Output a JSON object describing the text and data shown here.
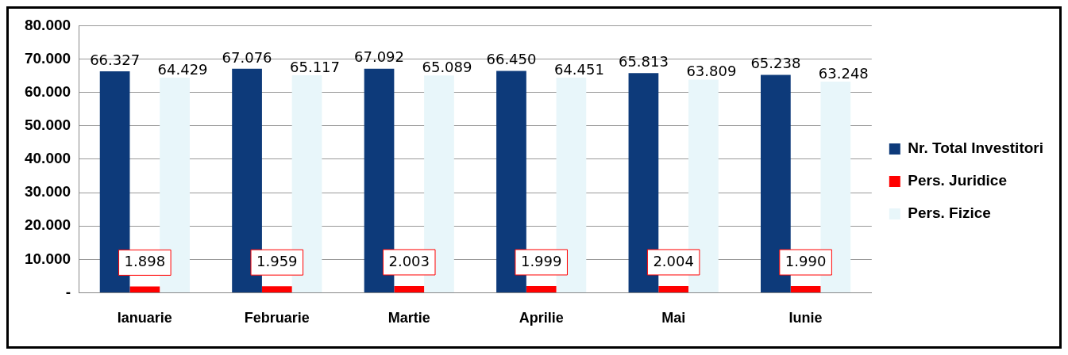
{
  "chart_data": {
    "type": "bar",
    "categories": [
      "Ianuarie",
      "Februarie",
      "Martie",
      "Aprilie",
      "Mai",
      "Iunie"
    ],
    "series": [
      {
        "name": "Nr. Total Investitori",
        "color": "#0d3a7a",
        "values": [
          66327,
          67076,
          67092,
          66450,
          65813,
          65238
        ],
        "value_labels": [
          "66.327",
          "67.076",
          "67.092",
          "66.450",
          "65.813",
          "65.238"
        ]
      },
      {
        "name": "Pers. Juridice",
        "color": "#ff0000",
        "values": [
          1898,
          1959,
          2003,
          1999,
          2004,
          1990
        ],
        "value_labels": [
          "1.898",
          "1.959",
          "2.003",
          "1.999",
          "2.004",
          "1.990"
        ]
      },
      {
        "name": "Pers. Fizice",
        "color": "#e8f6fa",
        "values": [
          64429,
          65117,
          65089,
          64451,
          63809,
          63248
        ],
        "value_labels": [
          "64.429",
          "65.117",
          "65.089",
          "64.451",
          "63.809",
          "63.248"
        ]
      }
    ],
    "ylim": [
      0,
      80000
    ],
    "yticks": [
      {
        "value": 0,
        "label": "-"
      },
      {
        "value": 10000,
        "label": "10.000"
      },
      {
        "value": 20000,
        "label": "20.000"
      },
      {
        "value": 30000,
        "label": "30.000"
      },
      {
        "value": 40000,
        "label": "40.000"
      },
      {
        "value": 50000,
        "label": "50.000"
      },
      {
        "value": 60000,
        "label": "60.000"
      },
      {
        "value": 70000,
        "label": "70.000"
      },
      {
        "value": 80000,
        "label": "80.000"
      }
    ],
    "grid": "y",
    "legend": "right"
  }
}
